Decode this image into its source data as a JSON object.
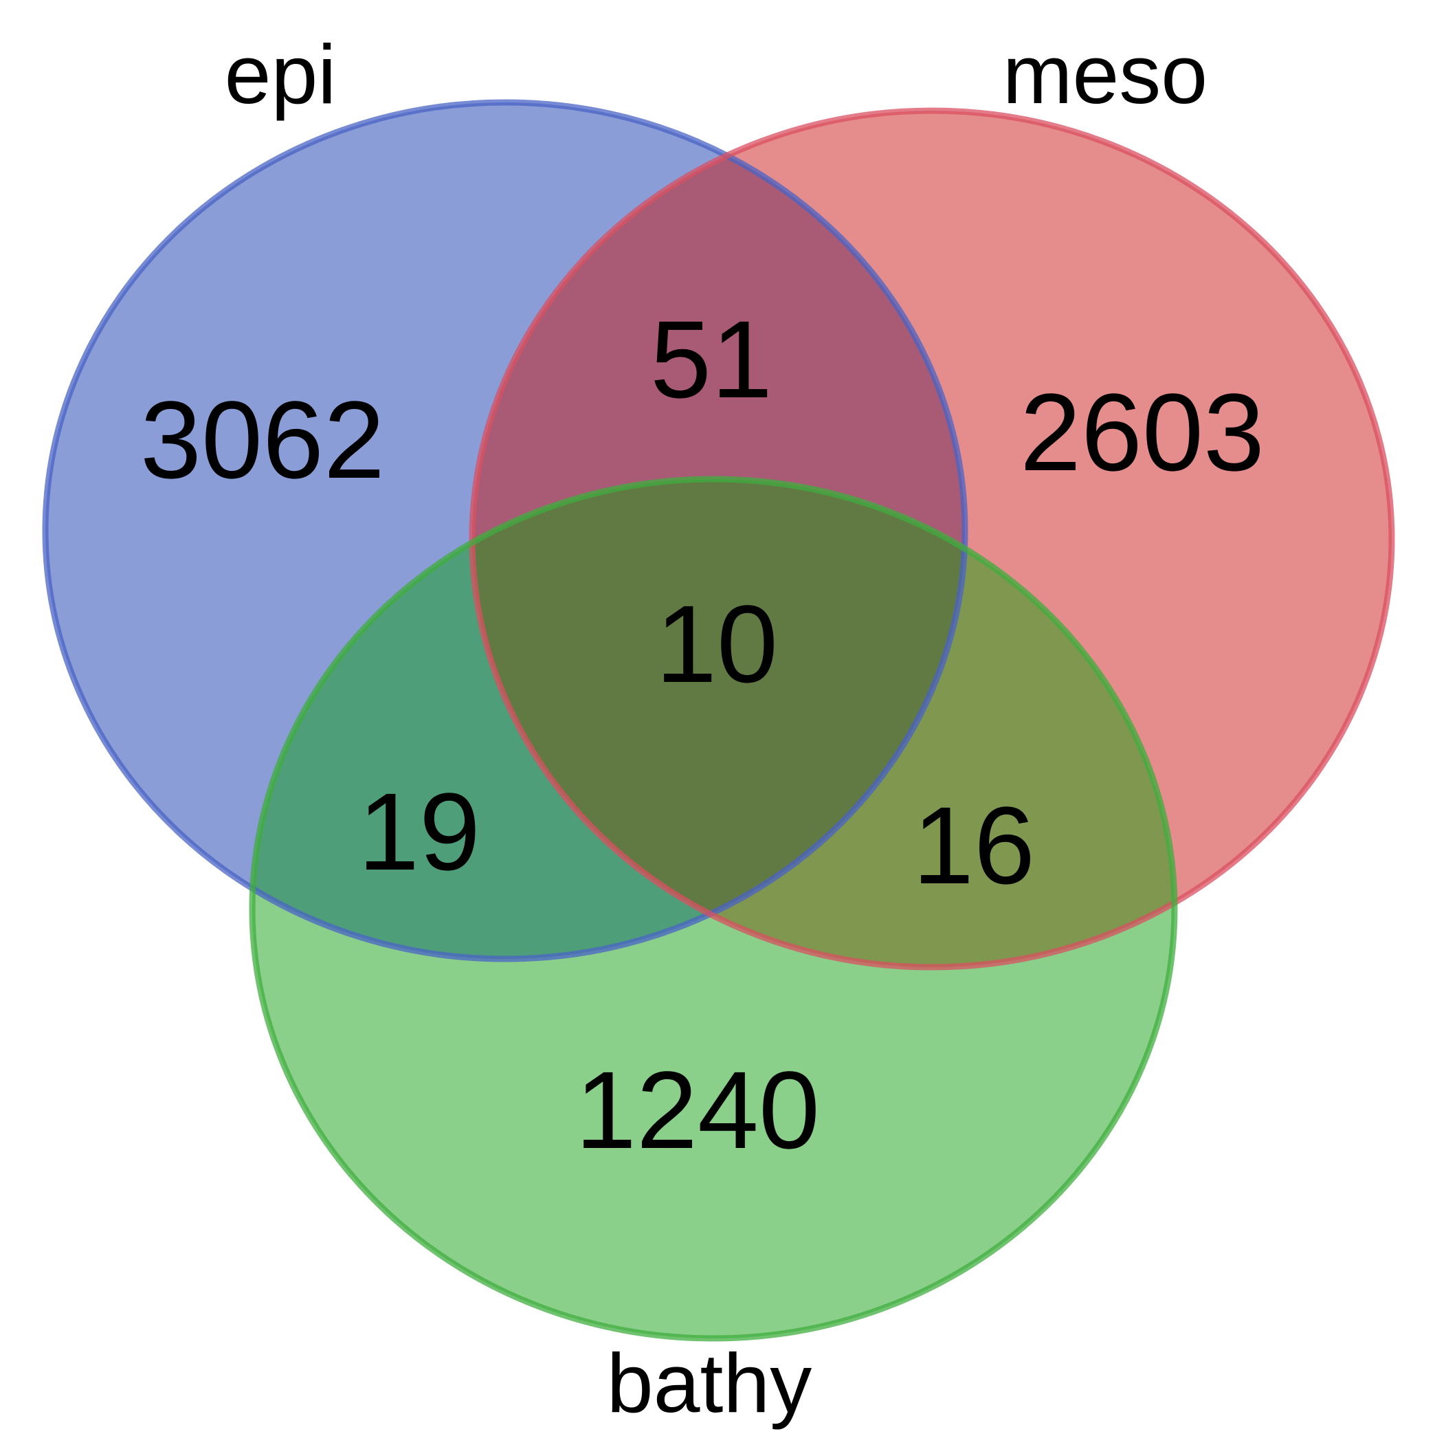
{
  "venn": {
    "sets": [
      {
        "key": "epi",
        "label": "epi",
        "fill": "#8a9dd6",
        "stroke": "#4a63c6"
      },
      {
        "key": "meso",
        "label": "meso",
        "fill": "#e58c8c",
        "stroke": "#d95060"
      },
      {
        "key": "bathy",
        "label": "bathy",
        "fill": "#6cc56a",
        "stroke": "#3fae3e"
      }
    ],
    "regions": {
      "epi_only": "3062",
      "meso_only": "2603",
      "bathy_only": "1240",
      "epi_meso": "51",
      "epi_bathy": "19",
      "meso_bathy": "16",
      "epi_meso_bathy": "10"
    }
  }
}
